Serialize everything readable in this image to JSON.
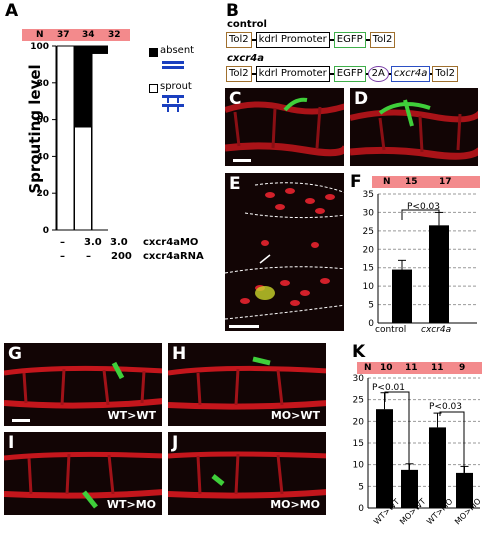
{
  "panels": {
    "A": "A",
    "B": "B",
    "C": "C",
    "D": "D",
    "E": "E",
    "F": "F",
    "G": "G",
    "H": "H",
    "I": "I",
    "J": "J",
    "K": "K"
  },
  "panelA": {
    "n_label": "N",
    "n_values": [
      "37",
      "34",
      "32"
    ],
    "ylabel": "Sprouting level",
    "yticks": [
      "0",
      "20",
      "40",
      "60",
      "80",
      "100"
    ],
    "legend_absent": "absent",
    "legend_sprout": "sprout",
    "row1": [
      "–",
      "3.0",
      "3.0",
      "cxcr4aMO"
    ],
    "row2": [
      "–",
      "–",
      "200",
      "cxcr4aRNA"
    ]
  },
  "panelB": {
    "label_control": "control",
    "label_cxcr4a": "cxcr4a",
    "tol2": "Tol2",
    "promoter": "kdrl Promoter",
    "egfp": "EGFP",
    "t2a": "2A",
    "cxcr4a": "cxcr4a"
  },
  "panelF": {
    "n_label": "N",
    "n_values": [
      "15",
      "17"
    ],
    "sig": "P<0.03",
    "yticks": [
      "0",
      "5",
      "10",
      "15",
      "20",
      "25",
      "30",
      "35"
    ],
    "xlabels": [
      "control",
      "cxcr4a"
    ]
  },
  "panelK": {
    "n_label": "N",
    "n_values": [
      "10",
      "11",
      "11",
      "9"
    ],
    "sig1": "P<0.01",
    "sig2": "P<0.03",
    "yticks": [
      "0",
      "5",
      "10",
      "15",
      "20",
      "25",
      "30"
    ],
    "xlabels": [
      "WT>WT",
      "MO>WT",
      "WT>MO",
      "MO>MO"
    ]
  },
  "image_captions": {
    "G": "WT>WT",
    "H": "MO>WT",
    "I": "WT>MO",
    "J": "MO>MO"
  },
  "chart_data": [
    {
      "type": "bar",
      "title": "",
      "ylabel": "Sprouting level",
      "ylim": [
        0,
        100
      ],
      "categories": [
        "–/–",
        "3.0/–",
        "3.0/200"
      ],
      "series": [
        {
          "name": "sprout",
          "values": [
            100,
            56,
            96
          ]
        },
        {
          "name": "absent",
          "values": [
            0,
            44,
            4
          ]
        }
      ],
      "colors": {
        "sprout": "#ffffff",
        "absent": "#000000"
      }
    },
    {
      "type": "bar",
      "categories": [
        "control",
        "cxcr4a"
      ],
      "values": [
        14.5,
        26.5
      ],
      "errors": [
        2.5,
        3.5
      ],
      "ylim": [
        0,
        35
      ]
    },
    {
      "type": "bar",
      "categories": [
        "WT>WT",
        "MO>WT",
        "WT>MO",
        "MO>MO"
      ],
      "values": [
        22.8,
        8.8,
        18.6,
        8.1
      ],
      "errors": [
        3.8,
        1.4,
        3.3,
        1.5
      ],
      "ylim": [
        0,
        30
      ]
    }
  ]
}
